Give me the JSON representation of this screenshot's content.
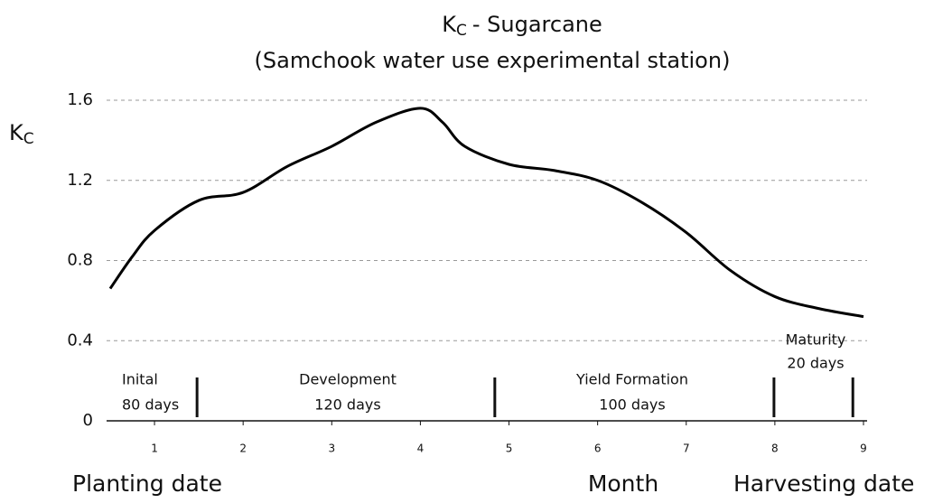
{
  "chart_data": {
    "type": "line",
    "title": {
      "symbol": "K",
      "subscript": "C",
      "text": "- Sugarcane"
    },
    "subtitle": "(Samchook water use experimental station)",
    "y_label": {
      "symbol": "K",
      "subscript": "C"
    },
    "x_label": "Month",
    "x_start_label": "Planting date",
    "x_end_label": "Harvesting date",
    "x": [
      0.5,
      0.75,
      1,
      1.5,
      2,
      2.5,
      3,
      3.5,
      4,
      4.25,
      4.5,
      5,
      5.5,
      6,
      6.5,
      7,
      7.5,
      8,
      8.5,
      9
    ],
    "series": [
      {
        "color": "#000000",
        "values": [
          0.66,
          0.82,
          0.95,
          1.1,
          1.14,
          1.27,
          1.37,
          1.49,
          1.56,
          1.49,
          1.37,
          1.28,
          1.25,
          1.2,
          1.09,
          0.94,
          0.75,
          0.62,
          0.56,
          0.52
        ]
      }
    ],
    "xlim": [
      0.5,
      9
    ],
    "xticks": [
      1,
      2,
      3,
      4,
      5,
      6,
      7,
      8,
      9
    ],
    "ylim": [
      0,
      1.6
    ],
    "yticks": [
      0,
      0.4,
      0.8,
      1.2,
      1.6
    ],
    "grid": true,
    "stage_boundaries": [
      1.48,
      4.84,
      7.99,
      8.88
    ],
    "stages": [
      {
        "name": "Inital",
        "duration": "80 days"
      },
      {
        "name": "Development",
        "duration": "120 days"
      },
      {
        "name": "Yield Formation",
        "duration": "100 days"
      },
      {
        "name": "Maturity",
        "duration": "20 days"
      }
    ]
  }
}
